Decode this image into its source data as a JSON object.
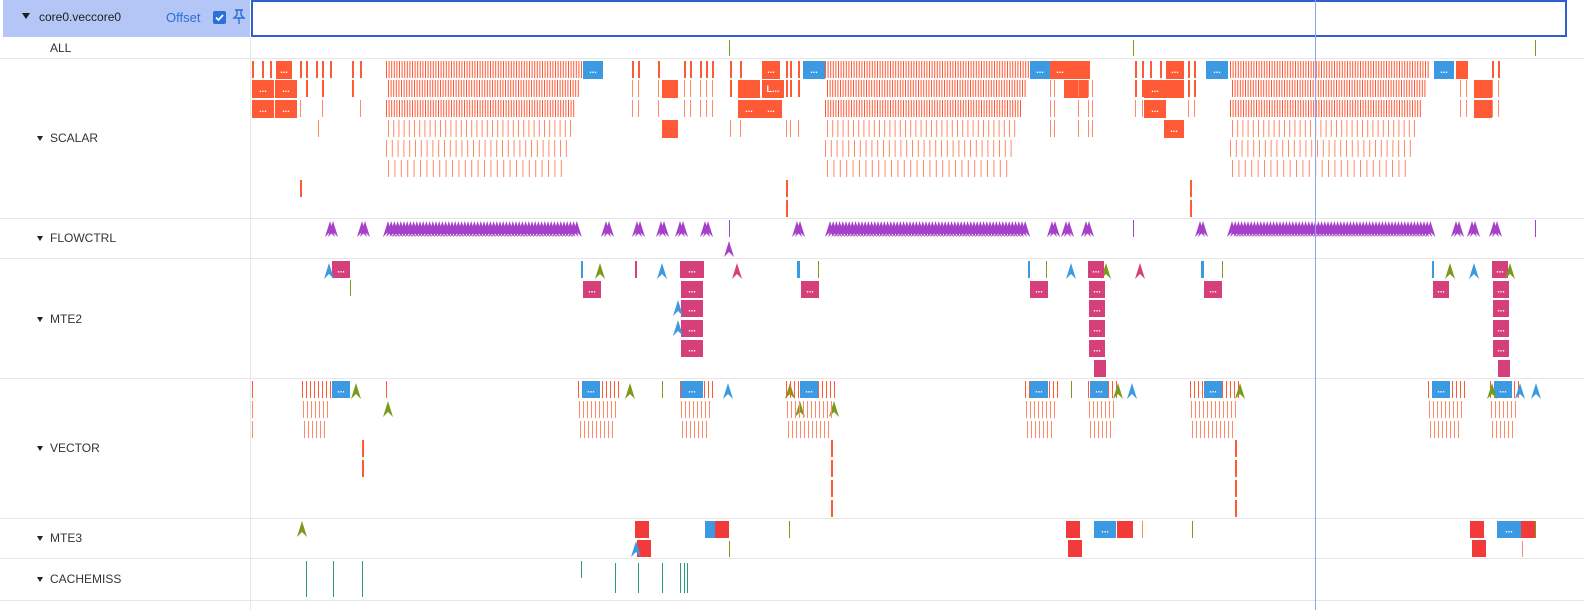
{
  "header": {
    "core_name": "core0.veccore0",
    "offset_label": "Offset",
    "offset_checked": true,
    "icons": [
      "chevron-down-icon",
      "checkbox-icon",
      "pin-icon"
    ]
  },
  "rows": [
    {
      "key": "all",
      "label": "ALL",
      "collapsible": false
    },
    {
      "key": "scalar",
      "label": "SCALAR",
      "collapsible": true
    },
    {
      "key": "flowctrl",
      "label": "FLOWCTRL",
      "collapsible": true
    },
    {
      "key": "mte2",
      "label": "MTE2",
      "collapsible": true
    },
    {
      "key": "vector",
      "label": "VECTOR",
      "collapsible": true
    },
    {
      "key": "mte3",
      "label": "MTE3",
      "collapsible": true
    },
    {
      "key": "cachemiss",
      "label": "CACHEMISS",
      "collapsible": true
    }
  ],
  "block_labels": {
    "ellipsis": "...",
    "truncated": "L..."
  },
  "colors": {
    "scalar": "#ff5a36",
    "scalar_light": "#ff8a6a",
    "blue": "#3b9ae1",
    "flowctrl": "#a640c8",
    "mte2": "#d6407a",
    "green": "#7a9a1e",
    "red": "#f23a3a",
    "cachemiss": "#2e9b78",
    "cursor": "#8aa8f0"
  }
}
